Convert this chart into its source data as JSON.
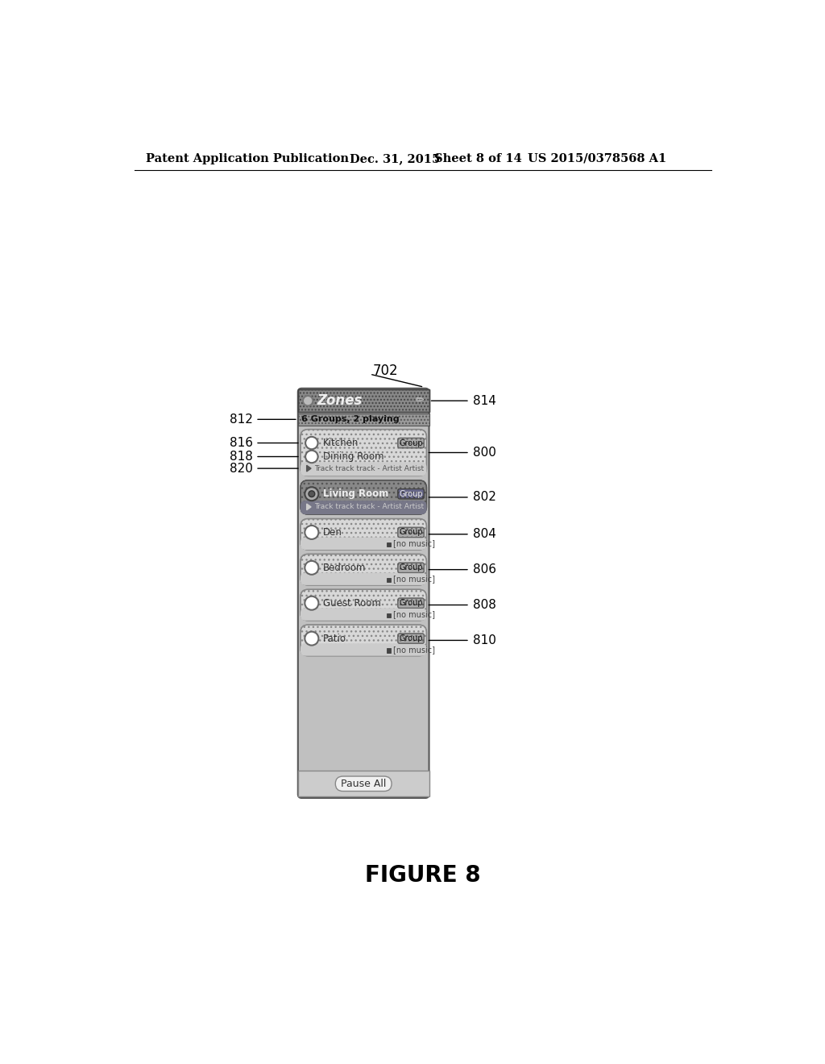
{
  "title": "FIGURE 8",
  "header_text": "Patent Application Publication",
  "header_date": "Dec. 31, 2015",
  "header_sheet": "Sheet 8 of 14",
  "header_patent": "US 2015/0378568 A1",
  "label_702": "702",
  "label_814": "814",
  "label_812": "812",
  "label_816": "816",
  "label_818": "818",
  "label_820": "820",
  "label_800": "800",
  "label_802": "802",
  "label_804": "804",
  "label_806": "806",
  "label_808": "808",
  "label_810": "810",
  "zones_title": "Zones",
  "subtitle": "6 Groups, 2 playing",
  "bg_color": "#ffffff",
  "phone_bg": "#b8b8b8",
  "header_bar_color": "#888888",
  "subtitle_bar_color": "#999999",
  "group_card_color": "#d4d4d4",
  "active_card_color": "#888888",
  "button_color_hatch": "#aaaaaa",
  "pause_bar_color": "#cccccc"
}
